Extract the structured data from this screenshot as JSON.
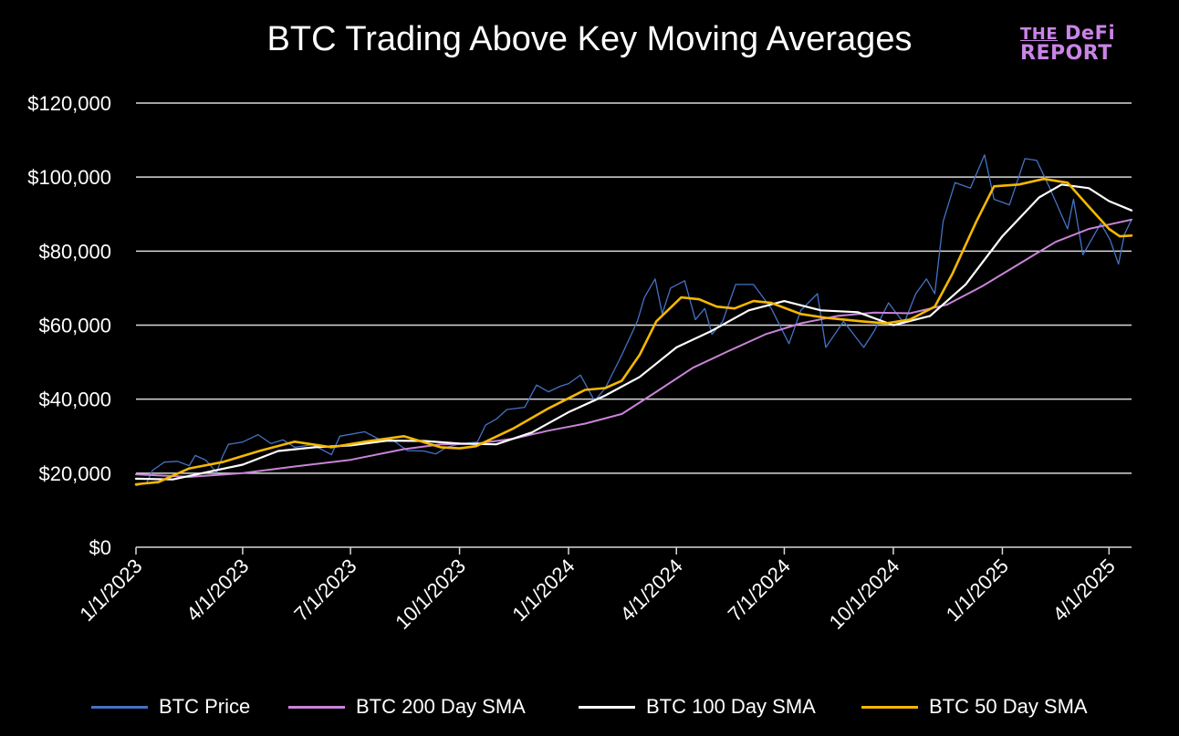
{
  "title": "BTC Trading Above Key Moving Averages",
  "logo": {
    "line1_the": "THE",
    "line1_rest": "DeFi",
    "line2": "REPORT"
  },
  "colors": {
    "background": "#000000",
    "grid": "#d9d9d9",
    "price": "#4472c4",
    "sma200": "#c984d8",
    "sma100": "#ffffff",
    "sma50": "#f5b800"
  },
  "chart_data": {
    "type": "line",
    "title": "BTC Trading Above Key Moving Averages",
    "ylim": [
      0,
      120000
    ],
    "xlim": [
      "2023-01-01",
      "2025-04-20"
    ],
    "grid": true,
    "legend_position": "bottom",
    "y_ticks": [
      {
        "value": 0,
        "label": "$0"
      },
      {
        "value": 20000,
        "label": "$20,000"
      },
      {
        "value": 40000,
        "label": "$40,000"
      },
      {
        "value": 60000,
        "label": "$60,000"
      },
      {
        "value": 80000,
        "label": "$80,000"
      },
      {
        "value": 100000,
        "label": "$100,000"
      },
      {
        "value": 120000,
        "label": "$120,000"
      }
    ],
    "x_ticks": [
      {
        "date": "2023-01-01",
        "label": "1/1/2023"
      },
      {
        "date": "2023-04-01",
        "label": "4/1/2023"
      },
      {
        "date": "2023-07-01",
        "label": "7/1/2023"
      },
      {
        "date": "2023-10-01",
        "label": "10/1/2023"
      },
      {
        "date": "2024-01-01",
        "label": "1/1/2024"
      },
      {
        "date": "2024-04-01",
        "label": "4/1/2024"
      },
      {
        "date": "2024-07-01",
        "label": "7/1/2024"
      },
      {
        "date": "2024-10-01",
        "label": "10/1/2024"
      },
      {
        "date": "2025-01-01",
        "label": "1/1/2025"
      },
      {
        "date": "2025-04-01",
        "label": "4/1/2025"
      }
    ],
    "series": [
      {
        "name": "BTC Price",
        "color": "#4472c4",
        "width": 1.3,
        "points": [
          [
            "2023-01-01",
            16600
          ],
          [
            "2023-01-10",
            17400
          ],
          [
            "2023-01-15",
            20800
          ],
          [
            "2023-01-25",
            23000
          ],
          [
            "2023-02-05",
            23200
          ],
          [
            "2023-02-15",
            22000
          ],
          [
            "2023-02-20",
            24800
          ],
          [
            "2023-03-01",
            23500
          ],
          [
            "2023-03-10",
            20200
          ],
          [
            "2023-03-15",
            24500
          ],
          [
            "2023-03-20",
            27800
          ],
          [
            "2023-04-01",
            28400
          ],
          [
            "2023-04-14",
            30400
          ],
          [
            "2023-04-25",
            28000
          ],
          [
            "2023-05-05",
            29000
          ],
          [
            "2023-05-15",
            27000
          ],
          [
            "2023-05-30",
            27700
          ],
          [
            "2023-06-15",
            25000
          ],
          [
            "2023-06-22",
            30000
          ],
          [
            "2023-07-01",
            30500
          ],
          [
            "2023-07-13",
            31200
          ],
          [
            "2023-07-25",
            29200
          ],
          [
            "2023-08-05",
            29100
          ],
          [
            "2023-08-18",
            26100
          ],
          [
            "2023-09-01",
            26000
          ],
          [
            "2023-09-11",
            25200
          ],
          [
            "2023-09-20",
            27000
          ],
          [
            "2023-10-01",
            27900
          ],
          [
            "2023-10-16",
            28400
          ],
          [
            "2023-10-23",
            33000
          ],
          [
            "2023-11-01",
            34600
          ],
          [
            "2023-11-10",
            37200
          ],
          [
            "2023-11-25",
            37800
          ],
          [
            "2023-12-05",
            43800
          ],
          [
            "2023-12-15",
            42000
          ],
          [
            "2023-12-25",
            43500
          ],
          [
            "2024-01-01",
            44200
          ],
          [
            "2024-01-11",
            46500
          ],
          [
            "2024-01-23",
            39500
          ],
          [
            "2024-02-01",
            43000
          ],
          [
            "2024-02-15",
            52000
          ],
          [
            "2024-02-28",
            61000
          ],
          [
            "2024-03-05",
            67500
          ],
          [
            "2024-03-14",
            72500
          ],
          [
            "2024-03-20",
            63000
          ],
          [
            "2024-03-27",
            70000
          ],
          [
            "2024-04-08",
            72000
          ],
          [
            "2024-04-17",
            61500
          ],
          [
            "2024-04-25",
            64500
          ],
          [
            "2024-05-01",
            57500
          ],
          [
            "2024-05-10",
            61000
          ],
          [
            "2024-05-21",
            71000
          ],
          [
            "2024-06-05",
            71000
          ],
          [
            "2024-06-20",
            64500
          ],
          [
            "2024-07-05",
            55000
          ],
          [
            "2024-07-15",
            64000
          ],
          [
            "2024-07-29",
            68500
          ],
          [
            "2024-08-05",
            54000
          ],
          [
            "2024-08-20",
            61000
          ],
          [
            "2024-09-06",
            54000
          ],
          [
            "2024-09-15",
            58500
          ],
          [
            "2024-09-27",
            66000
          ],
          [
            "2024-10-10",
            60500
          ],
          [
            "2024-10-20",
            68500
          ],
          [
            "2024-10-29",
            72500
          ],
          [
            "2024-11-05",
            68500
          ],
          [
            "2024-11-12",
            88000
          ],
          [
            "2024-11-22",
            98500
          ],
          [
            "2024-12-05",
            97000
          ],
          [
            "2024-12-17",
            106000
          ],
          [
            "2024-12-25",
            94000
          ],
          [
            "2025-01-07",
            92500
          ],
          [
            "2025-01-20",
            105000
          ],
          [
            "2025-01-30",
            104500
          ],
          [
            "2025-02-10",
            97000
          ],
          [
            "2025-02-25",
            86000
          ],
          [
            "2025-03-02",
            94000
          ],
          [
            "2025-03-10",
            79000
          ],
          [
            "2025-03-25",
            87500
          ],
          [
            "2025-04-02",
            83000
          ],
          [
            "2025-04-09",
            76500
          ],
          [
            "2025-04-14",
            84500
          ],
          [
            "2025-04-20",
            88500
          ]
        ]
      },
      {
        "name": "BTC 200 Day SMA",
        "color": "#c984d8",
        "width": 2,
        "points": [
          [
            "2023-01-01",
            19700
          ],
          [
            "2023-02-15",
            19000
          ],
          [
            "2023-04-01",
            20000
          ],
          [
            "2023-05-15",
            21800
          ],
          [
            "2023-07-01",
            23600
          ],
          [
            "2023-08-15",
            26500
          ],
          [
            "2023-09-15",
            27800
          ],
          [
            "2023-10-15",
            28000
          ],
          [
            "2023-11-15",
            29300
          ],
          [
            "2023-12-15",
            31500
          ],
          [
            "2024-01-15",
            33400
          ],
          [
            "2024-02-15",
            36000
          ],
          [
            "2024-03-15",
            42000
          ],
          [
            "2024-04-15",
            48500
          ],
          [
            "2024-05-15",
            53000
          ],
          [
            "2024-06-15",
            57500
          ],
          [
            "2024-07-15",
            60500
          ],
          [
            "2024-08-15",
            62500
          ],
          [
            "2024-09-15",
            63400
          ],
          [
            "2024-10-15",
            63200
          ],
          [
            "2024-11-15",
            65500
          ],
          [
            "2024-12-15",
            70500
          ],
          [
            "2025-01-15",
            76500
          ],
          [
            "2025-02-15",
            82500
          ],
          [
            "2025-03-15",
            86000
          ],
          [
            "2025-04-20",
            88500
          ]
        ]
      },
      {
        "name": "BTC 100 Day SMA",
        "color": "#ffffff",
        "width": 2.2,
        "points": [
          [
            "2023-01-01",
            18500
          ],
          [
            "2023-02-01",
            18300
          ],
          [
            "2023-03-01",
            20200
          ],
          [
            "2023-04-01",
            22300
          ],
          [
            "2023-05-01",
            26000
          ],
          [
            "2023-06-01",
            27000
          ],
          [
            "2023-07-01",
            27500
          ],
          [
            "2023-08-01",
            28800
          ],
          [
            "2023-09-01",
            28700
          ],
          [
            "2023-10-01",
            28000
          ],
          [
            "2023-11-01",
            27800
          ],
          [
            "2023-12-01",
            31000
          ],
          [
            "2024-01-01",
            36500
          ],
          [
            "2024-02-01",
            41000
          ],
          [
            "2024-03-01",
            46000
          ],
          [
            "2024-04-01",
            54000
          ],
          [
            "2024-05-01",
            58500
          ],
          [
            "2024-06-01",
            64000
          ],
          [
            "2024-07-01",
            66500
          ],
          [
            "2024-08-01",
            64000
          ],
          [
            "2024-09-01",
            63500
          ],
          [
            "2024-10-01",
            60000
          ],
          [
            "2024-11-01",
            62500
          ],
          [
            "2024-12-01",
            71000
          ],
          [
            "2025-01-01",
            84000
          ],
          [
            "2025-02-01",
            94500
          ],
          [
            "2025-02-20",
            98000
          ],
          [
            "2025-03-15",
            97000
          ],
          [
            "2025-04-01",
            93500
          ],
          [
            "2025-04-20",
            91000
          ]
        ]
      },
      {
        "name": "BTC 50 Day SMA",
        "color": "#f5b800",
        "width": 2.6,
        "points": [
          [
            "2023-01-01",
            17000
          ],
          [
            "2023-01-20",
            17600
          ],
          [
            "2023-02-15",
            21300
          ],
          [
            "2023-03-15",
            23000
          ],
          [
            "2023-04-15",
            26000
          ],
          [
            "2023-05-15",
            28500
          ],
          [
            "2023-06-15",
            27000
          ],
          [
            "2023-07-15",
            28600
          ],
          [
            "2023-08-15",
            30000
          ],
          [
            "2023-09-15",
            27000
          ],
          [
            "2023-10-01",
            26700
          ],
          [
            "2023-10-15",
            27300
          ],
          [
            "2023-11-15",
            32000
          ],
          [
            "2023-12-15",
            37500
          ],
          [
            "2024-01-15",
            42500
          ],
          [
            "2024-02-01",
            43000
          ],
          [
            "2024-02-15",
            45000
          ],
          [
            "2024-03-01",
            52000
          ],
          [
            "2024-03-15",
            61000
          ],
          [
            "2024-04-05",
            67500
          ],
          [
            "2024-04-20",
            67000
          ],
          [
            "2024-05-05",
            65000
          ],
          [
            "2024-05-20",
            64500
          ],
          [
            "2024-06-05",
            66500
          ],
          [
            "2024-06-20",
            66000
          ],
          [
            "2024-07-15",
            63000
          ],
          [
            "2024-08-05",
            62000
          ],
          [
            "2024-09-05",
            61000
          ],
          [
            "2024-09-25",
            60500
          ],
          [
            "2024-10-15",
            61500
          ],
          [
            "2024-11-05",
            65000
          ],
          [
            "2024-11-20",
            74000
          ],
          [
            "2024-12-10",
            88000
          ],
          [
            "2024-12-25",
            97500
          ],
          [
            "2025-01-15",
            98000
          ],
          [
            "2025-02-05",
            99500
          ],
          [
            "2025-02-25",
            98500
          ],
          [
            "2025-03-15",
            92000
          ],
          [
            "2025-04-01",
            86000
          ],
          [
            "2025-04-10",
            84000
          ],
          [
            "2025-04-20",
            84200
          ]
        ]
      }
    ]
  }
}
